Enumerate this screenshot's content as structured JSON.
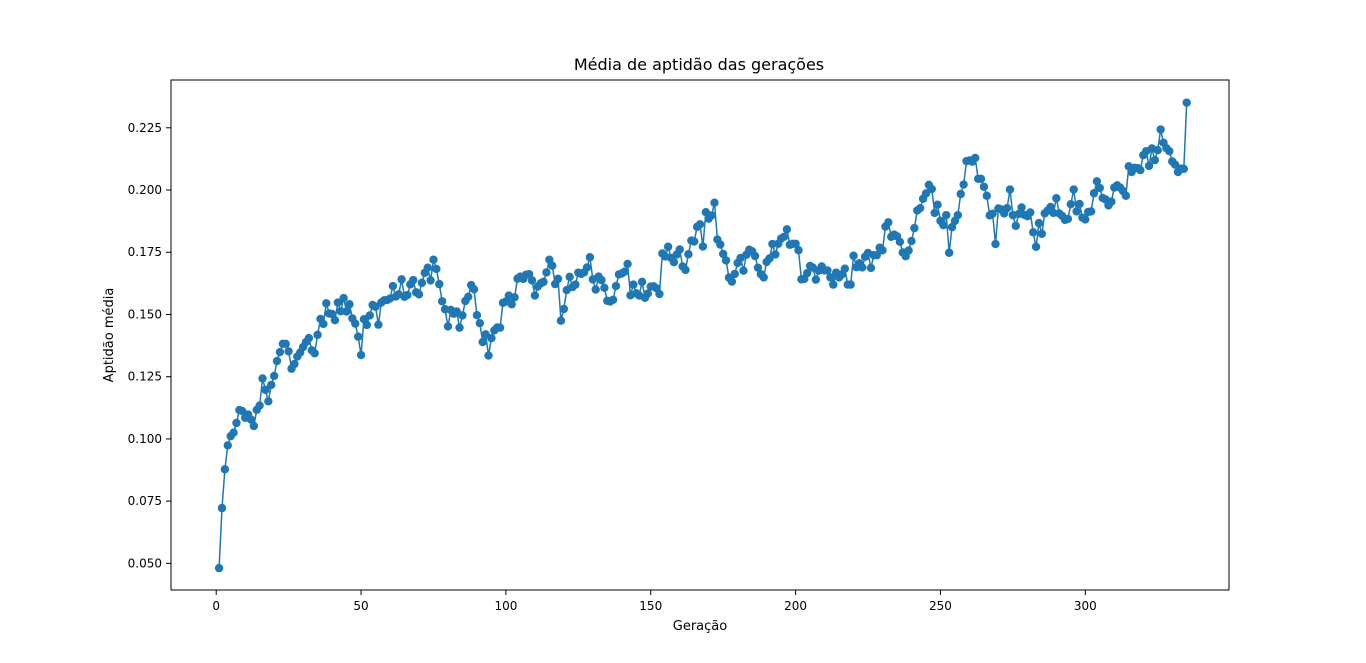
{
  "chart_data": {
    "type": "line",
    "title": "Média de aptidão das gerações",
    "xlabel": "Geração",
    "ylabel": "Aptidão média",
    "xlim": [
      -15.6,
      349.6
    ],
    "ylim": [
      0.0393,
      0.2442
    ],
    "xticks": [
      0,
      50,
      100,
      150,
      200,
      250,
      300
    ],
    "xtick_labels": [
      "0",
      "50",
      "100",
      "150",
      "200",
      "250",
      "300"
    ],
    "yticks": [
      0.05,
      0.075,
      0.1,
      0.125,
      0.15,
      0.175,
      0.2,
      0.225
    ],
    "ytick_labels": [
      "0.050",
      "0.075",
      "0.100",
      "0.125",
      "0.150",
      "0.175",
      "0.200",
      "0.225"
    ],
    "grid": false,
    "marker": "circle",
    "series": [
      {
        "color": "#1f77b4",
        "x_start": 1,
        "x_step": 1,
        "values": [
          0.0481,
          0.0722,
          0.0878,
          0.0974,
          0.1011,
          0.1025,
          0.1064,
          0.1116,
          0.1112,
          0.1085,
          0.1098,
          0.1078,
          0.1052,
          0.1117,
          0.1134,
          0.1243,
          0.1197,
          0.1151,
          0.1217,
          0.1253,
          0.1313,
          0.1349,
          0.1382,
          0.1382,
          0.1352,
          0.1282,
          0.1301,
          0.1331,
          0.1347,
          0.1369,
          0.1389,
          0.1405,
          0.1356,
          0.1344,
          0.1418,
          0.1482,
          0.1462,
          0.1545,
          0.1504,
          0.1502,
          0.1477,
          0.1548,
          0.1513,
          0.1566,
          0.1512,
          0.1541,
          0.1484,
          0.1463,
          0.1411,
          0.1337,
          0.1481,
          0.1458,
          0.1496,
          0.1538,
          0.1531,
          0.1459,
          0.1548,
          0.1557,
          0.1558,
          0.1564,
          0.1614,
          0.1572,
          0.1581,
          0.1641,
          0.1571,
          0.1578,
          0.1621,
          0.1638,
          0.1589,
          0.1581,
          0.1627,
          0.1667,
          0.1688,
          0.1637,
          0.172,
          0.1683,
          0.1622,
          0.1553,
          0.1521,
          0.1452,
          0.1518,
          0.1503,
          0.1512,
          0.1447,
          0.1496,
          0.1554,
          0.1571,
          0.1618,
          0.1601,
          0.1497,
          0.1465,
          0.1389,
          0.142,
          0.1335,
          0.1405,
          0.1436,
          0.1448,
          0.1447,
          0.1547,
          0.1552,
          0.1576,
          0.1541,
          0.1569,
          0.1644,
          0.1652,
          0.1643,
          0.166,
          0.1662,
          0.1637,
          0.1576,
          0.1612,
          0.1625,
          0.1631,
          0.1669,
          0.172,
          0.1696,
          0.1622,
          0.1643,
          0.1475,
          0.1522,
          0.1598,
          0.1651,
          0.161,
          0.162,
          0.1668,
          0.1663,
          0.1669,
          0.1689,
          0.173,
          0.1641,
          0.16,
          0.1652,
          0.1638,
          0.1607,
          0.1555,
          0.1552,
          0.1559,
          0.1614,
          0.1661,
          0.1665,
          0.1672,
          0.1703,
          0.1577,
          0.162,
          0.1585,
          0.1576,
          0.1631,
          0.1567,
          0.1584,
          0.1612,
          0.1613,
          0.1605,
          0.1582,
          0.1745,
          0.1733,
          0.1772,
          0.1727,
          0.171,
          0.1741,
          0.1761,
          0.1693,
          0.1679,
          0.1742,
          0.1797,
          0.1793,
          0.1852,
          0.1862,
          0.1773,
          0.1911,
          0.1885,
          0.1898,
          0.1949,
          0.1801,
          0.1781,
          0.1743,
          0.1717,
          0.1648,
          0.1632,
          0.1663,
          0.1707,
          0.1727,
          0.1676,
          0.174,
          0.176,
          0.1754,
          0.1735,
          0.1688,
          0.1662,
          0.1649,
          0.1711,
          0.1725,
          0.1783,
          0.1741,
          0.1784,
          0.1805,
          0.1812,
          0.1842,
          0.178,
          0.1784,
          0.1784,
          0.1758,
          0.1641,
          0.1643,
          0.1666,
          0.1695,
          0.1688,
          0.164,
          0.1676,
          0.1693,
          0.1677,
          0.1677,
          0.1649,
          0.162,
          0.1668,
          0.1649,
          0.1661,
          0.1684,
          0.162,
          0.162,
          0.1736,
          0.169,
          0.1706,
          0.1689,
          0.1732,
          0.1747,
          0.1687,
          0.1738,
          0.1738,
          0.1768,
          0.1758,
          0.1853,
          0.187,
          0.1812,
          0.1821,
          0.1814,
          0.1792,
          0.1749,
          0.1734,
          0.1757,
          0.1795,
          0.1847,
          0.1918,
          0.1927,
          0.1965,
          0.1986,
          0.2021,
          0.2004,
          0.1908,
          0.1941,
          0.1876,
          0.1859,
          0.1899,
          0.1748,
          0.1851,
          0.1876,
          0.1899,
          0.1984,
          0.2022,
          0.2116,
          0.2119,
          0.2114,
          0.2129,
          0.2045,
          0.2045,
          0.2013,
          0.1977,
          0.1898,
          0.1905,
          0.1783,
          0.1926,
          0.1922,
          0.1906,
          0.1927,
          0.2002,
          0.1899,
          0.1856,
          0.1904,
          0.193,
          0.19,
          0.1895,
          0.191,
          0.183,
          0.1772,
          0.1867,
          0.1824,
          0.1906,
          0.1918,
          0.1932,
          0.1908,
          0.1967,
          0.1906,
          0.1896,
          0.188,
          0.1884,
          0.1943,
          0.2002,
          0.1914,
          0.1944,
          0.1889,
          0.1882,
          0.1912,
          0.1914,
          0.1987,
          0.2035,
          0.2008,
          0.1968,
          0.1962,
          0.1938,
          0.1953,
          0.201,
          0.2019,
          0.201,
          0.1996,
          0.1977,
          0.2095,
          0.2072,
          0.2089,
          0.2088,
          0.208,
          0.214,
          0.2156,
          0.2097,
          0.2167,
          0.212,
          0.216,
          0.2243,
          0.219,
          0.2168,
          0.2156,
          0.2115,
          0.2102,
          0.2072,
          0.2086,
          0.2085,
          0.2351
        ]
      }
    ]
  }
}
